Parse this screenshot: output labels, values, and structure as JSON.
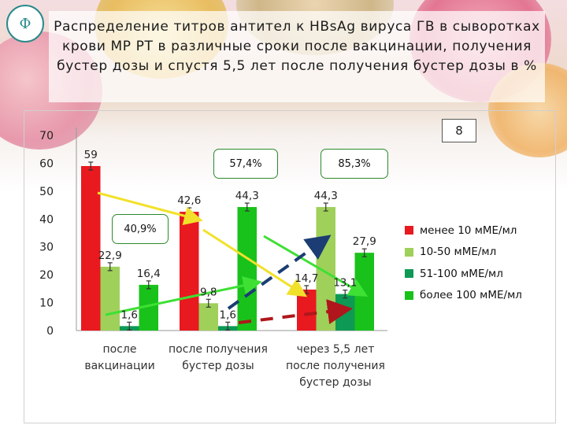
{
  "slide": {
    "title": "Распределение титров антител к HBsAg вируса  ГВ в сыворотках крови  МР РТ в различные сроки  после вакцинации, получения бустер дозы и спустя 5,5 лет после получения бустер дозы в %",
    "page_number": "8",
    "callouts": [
      "57,4%",
      "85,3%",
      "40,9%"
    ]
  },
  "chart_data": {
    "type": "bar",
    "title": "",
    "xlabel": "",
    "ylabel": "",
    "ylim": [
      0,
      70
    ],
    "yticks": [
      0,
      10,
      20,
      30,
      40,
      50,
      60,
      70
    ],
    "categories": [
      [
        "после",
        "вакцинации"
      ],
      [
        "после получения",
        "бустер дозы"
      ],
      [
        "через 5,5 лет",
        "после получения",
        "бустер дозы"
      ]
    ],
    "series": [
      {
        "name": "менее 10 мМЕ/мл",
        "color": "#e8191f",
        "values": [
          59,
          42.6,
          14.7
        ],
        "labels": [
          "59",
          "42,6",
          "14,7"
        ]
      },
      {
        "name": "10-50 мМЕ/мл",
        "color": "#9fd05a",
        "values": [
          22.9,
          9.8,
          44.3
        ],
        "labels": [
          "22,9",
          "9,8",
          "44,3"
        ]
      },
      {
        "name": "51-100 мМЕ/мл",
        "color": "#0e9a55",
        "values": [
          1.6,
          1.6,
          13.1
        ],
        "labels": [
          "1,6",
          "1,6",
          "13,1"
        ]
      },
      {
        "name": "более 100 мМЕ/мл",
        "color": "#19c21a",
        "values": [
          16.4,
          44.3,
          27.9
        ],
        "labels": [
          "16,4",
          "44,3",
          "27,9"
        ]
      }
    ],
    "grid": false,
    "legend": "right"
  }
}
